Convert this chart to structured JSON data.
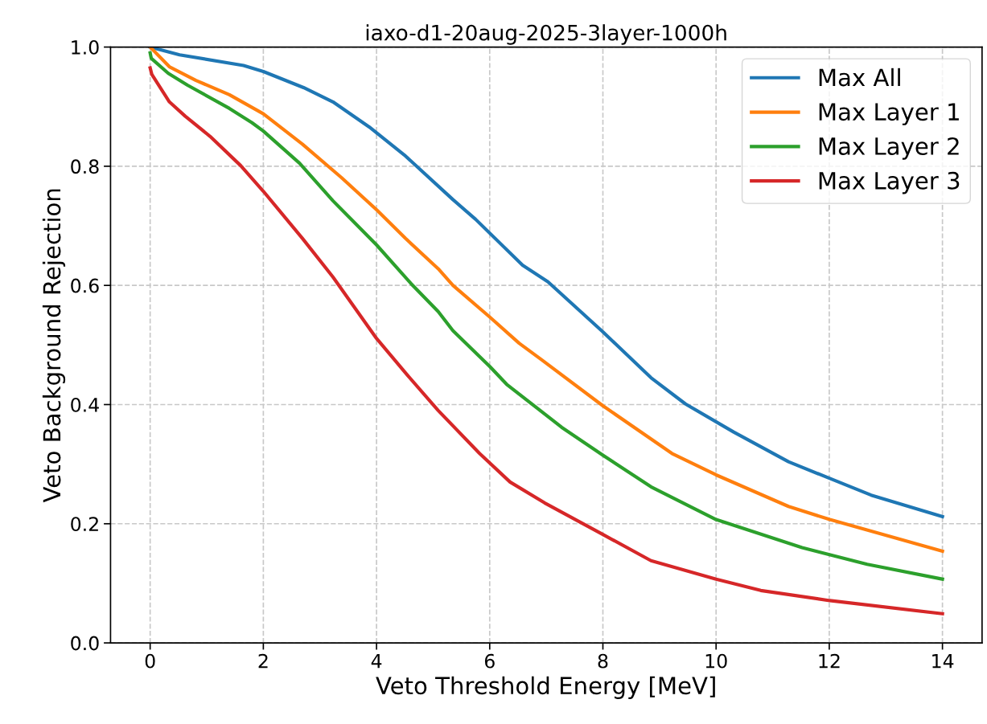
{
  "chart_data": {
    "type": "line",
    "title": "iaxo-d1-20aug-2025-3layer-1000h",
    "xlabel": "Veto Threshold Energy [MeV]",
    "ylabel": "Veto Background Rejection",
    "xlim": [
      -0.7,
      14.7
    ],
    "ylim": [
      0.0,
      1.0
    ],
    "xticks": [
      0,
      2,
      4,
      6,
      8,
      10,
      12,
      14
    ],
    "yticks": [
      {
        "value": 0,
        "label": "0.0"
      },
      {
        "value": 0.2,
        "label": "0.2"
      },
      {
        "value": 0.4,
        "label": "0.4"
      },
      {
        "value": 0.6,
        "label": "0.6"
      },
      {
        "value": 0.8,
        "label": "0.8"
      },
      {
        "value": 1.0,
        "label": "1.0"
      }
    ],
    "grid": true,
    "legend": "top right",
    "line_style": "solid",
    "marker": "none",
    "series": [
      {
        "name": "Max All",
        "color": "#1f77b4",
        "x": [
          0,
          0.52,
          1.65,
          2.0,
          2.71,
          3.23,
          3.87,
          4.49,
          5.35,
          5.75,
          6.58,
          7.03,
          8.0,
          8.85,
          9.46,
          10.31,
          11.28,
          12.01,
          12.74,
          14.0
        ],
        "values": [
          1.0,
          0.987,
          0.969,
          0.959,
          0.932,
          0.908,
          0.866,
          0.819,
          0.744,
          0.711,
          0.634,
          0.606,
          0.522,
          0.445,
          0.401,
          0.354,
          0.304,
          0.276,
          0.248,
          0.212
        ]
      },
      {
        "name": "Max Layer 1",
        "color": "#ff7f0e",
        "x": [
          0,
          0.34,
          0.81,
          1.4,
          2.0,
          2.69,
          3.38,
          4.0,
          4.51,
          5.09,
          5.35,
          6.0,
          6.52,
          6.92,
          8.0,
          9.22,
          10.0,
          11.28,
          12.01,
          14.0
        ],
        "values": [
          1.0,
          0.967,
          0.944,
          0.92,
          0.888,
          0.837,
          0.781,
          0.727,
          0.679,
          0.628,
          0.6,
          0.547,
          0.503,
          0.475,
          0.398,
          0.318,
          0.282,
          0.229,
          0.207,
          0.154
        ]
      },
      {
        "name": "Max Layer 2",
        "color": "#2ca02c",
        "x": [
          0,
          0.02,
          0.32,
          0.66,
          1.4,
          1.8,
          2.0,
          2.64,
          3.23,
          4.0,
          4.61,
          5.09,
          5.35,
          6.0,
          6.3,
          7.27,
          8.0,
          8.85,
          10.0,
          11.52,
          12.67,
          14.0
        ],
        "values": [
          0.99,
          0.981,
          0.956,
          0.936,
          0.897,
          0.873,
          0.859,
          0.805,
          0.742,
          0.668,
          0.603,
          0.556,
          0.524,
          0.464,
          0.434,
          0.362,
          0.315,
          0.262,
          0.207,
          0.16,
          0.132,
          0.107
        ]
      },
      {
        "name": "Max Layer 3",
        "color": "#d62728",
        "x": [
          0,
          0.03,
          0.34,
          0.62,
          1.06,
          1.6,
          2.0,
          2.69,
          3.23,
          4.0,
          4.54,
          5.09,
          5.82,
          6.36,
          6.97,
          8.0,
          8.85,
          10.0,
          10.79,
          12.01,
          14.0
        ],
        "values": [
          0.965,
          0.954,
          0.908,
          0.884,
          0.85,
          0.801,
          0.758,
          0.679,
          0.614,
          0.511,
          0.45,
          0.39,
          0.318,
          0.27,
          0.235,
          0.182,
          0.138,
          0.107,
          0.088,
          0.071,
          0.049
        ]
      }
    ]
  }
}
